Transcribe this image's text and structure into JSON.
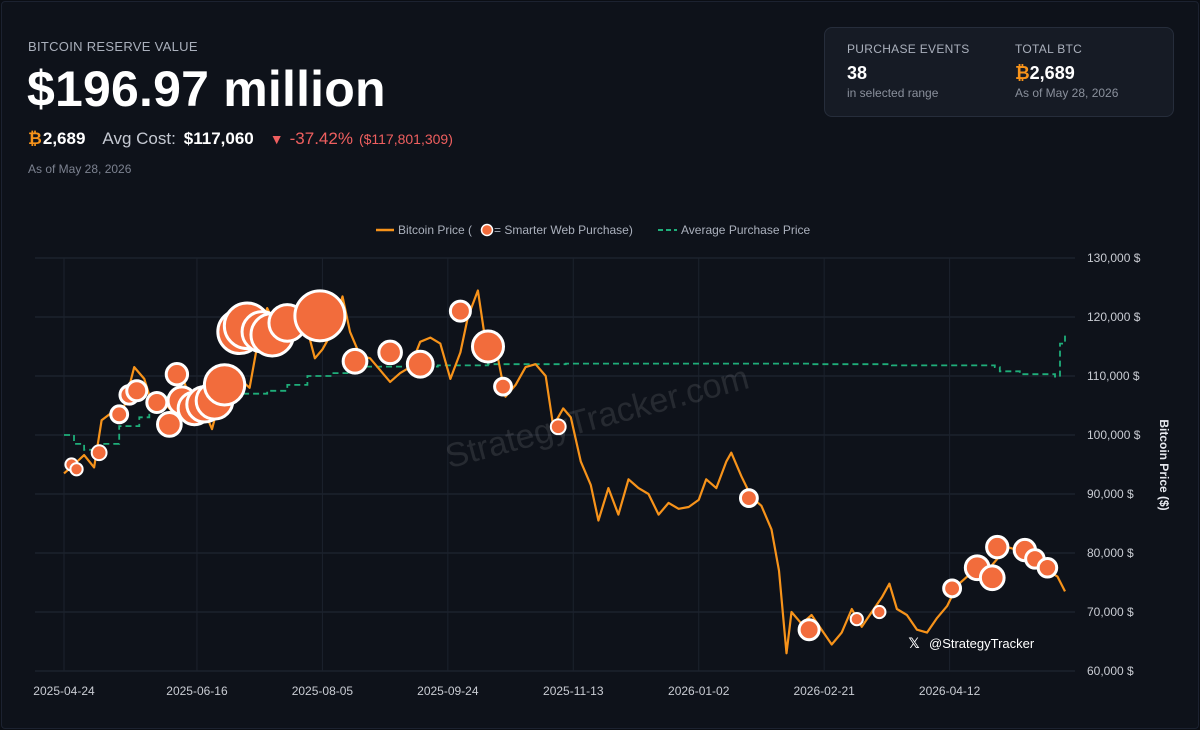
{
  "header": {
    "label": "BITCOIN RESERVE VALUE",
    "value": "$196.97 million",
    "btc_symbol": "₿",
    "btc_amount": "2,689",
    "avg_cost_label": "Avg Cost:",
    "avg_cost_value": "$117,060",
    "change_arrow": "▼",
    "change_pct": "-37.42%",
    "change_abs": "($117,801,309)",
    "as_of": "As of May 28, 2026"
  },
  "summary_card": {
    "events_label": "PURCHASE EVENTS",
    "events_value": "38",
    "events_sub": "in selected range",
    "total_label": "TOTAL BTC",
    "total_symbol": "₿",
    "total_value": "2,689",
    "total_sub": "As of May 28, 2026"
  },
  "colors": {
    "price_line": "#f7931a",
    "avg_line": "#1fae7a",
    "marker_fill": "#f26c3c",
    "marker_stroke": "#ffffff",
    "negative": "#ef5f5f",
    "background": "#0e121a"
  },
  "chart_data": {
    "type": "line",
    "legend": {
      "price_prefix": "Bitcoin Price (",
      "price_suffix": " = Smarter Web Purchase)",
      "avg": "Average Purchase Price",
      "position": "top-center"
    },
    "ylabel": "Bitcoin Price ($)",
    "ylim": [
      60000,
      130000
    ],
    "y_ticks": [
      60000,
      70000,
      80000,
      90000,
      100000,
      110000,
      120000,
      130000
    ],
    "y_tick_labels": [
      "60,000 $",
      "70,000 $",
      "80,000 $",
      "90,000 $",
      "100,000 $",
      "110,000 $",
      "120,000 $",
      "130,000 $"
    ],
    "xlim": [
      "2025-04-24",
      "2026-05-28"
    ],
    "x_tick_labels": [
      "2025-04-24",
      "2025-06-16",
      "2025-08-05",
      "2025-09-24",
      "2025-11-13",
      "2026-01-02",
      "2026-02-21",
      "2026-04-12"
    ],
    "watermark": "StrategyTracker.com",
    "handle": "@StrategyTracker",
    "handle_icon": "x-logo-icon",
    "grid": true,
    "price_series": {
      "name": "Bitcoin Price",
      "points": [
        [
          "2025-04-24",
          93500
        ],
        [
          "2025-04-28",
          95000
        ],
        [
          "2025-05-02",
          96600
        ],
        [
          "2025-05-06",
          94500
        ],
        [
          "2025-05-09",
          102500
        ],
        [
          "2025-05-13",
          103800
        ],
        [
          "2025-05-17",
          103200
        ],
        [
          "2025-05-22",
          111500
        ],
        [
          "2025-05-26",
          109500
        ],
        [
          "2025-05-30",
          104000
        ],
        [
          "2025-06-03",
          105500
        ],
        [
          "2025-06-06",
          104000
        ],
        [
          "2025-06-10",
          110000
        ],
        [
          "2025-06-14",
          105500
        ],
        [
          "2025-06-18",
          105000
        ],
        [
          "2025-06-22",
          101000
        ],
        [
          "2025-06-26",
          107500
        ],
        [
          "2025-06-30",
          107200
        ],
        [
          "2025-07-03",
          109500
        ],
        [
          "2025-07-07",
          108000
        ],
        [
          "2025-07-11",
          117500
        ],
        [
          "2025-07-14",
          121500
        ],
        [
          "2025-07-18",
          118000
        ],
        [
          "2025-07-22",
          119500
        ],
        [
          "2025-07-26",
          117500
        ],
        [
          "2025-07-30",
          117800
        ],
        [
          "2025-08-02",
          113000
        ],
        [
          "2025-08-05",
          114500
        ],
        [
          "2025-08-09",
          117500
        ],
        [
          "2025-08-13",
          123500
        ],
        [
          "2025-08-16",
          117500
        ],
        [
          "2025-08-20",
          113500
        ],
        [
          "2025-08-24",
          113000
        ],
        [
          "2025-08-28",
          111000
        ],
        [
          "2025-09-01",
          109000
        ],
        [
          "2025-09-05",
          110500
        ],
        [
          "2025-09-09",
          111500
        ],
        [
          "2025-09-13",
          115800
        ],
        [
          "2025-09-17",
          116500
        ],
        [
          "2025-09-21",
          115500
        ],
        [
          "2025-09-25",
          109500
        ],
        [
          "2025-09-29",
          114000
        ],
        [
          "2025-10-02",
          120000
        ],
        [
          "2025-10-06",
          124500
        ],
        [
          "2025-10-10",
          113000
        ],
        [
          "2025-10-14",
          113000
        ],
        [
          "2025-10-17",
          106500
        ],
        [
          "2025-10-21",
          108500
        ],
        [
          "2025-10-25",
          111500
        ],
        [
          "2025-10-29",
          112000
        ],
        [
          "2025-11-02",
          110000
        ],
        [
          "2025-11-05",
          101500
        ],
        [
          "2025-11-09",
          104500
        ],
        [
          "2025-11-12",
          103000
        ],
        [
          "2025-11-16",
          95500
        ],
        [
          "2025-11-20",
          91500
        ],
        [
          "2025-11-23",
          85500
        ],
        [
          "2025-11-27",
          91000
        ],
        [
          "2025-12-01",
          86500
        ],
        [
          "2025-12-05",
          92500
        ],
        [
          "2025-12-09",
          91000
        ],
        [
          "2025-12-13",
          90000
        ],
        [
          "2025-12-17",
          86500
        ],
        [
          "2025-12-21",
          88500
        ],
        [
          "2025-12-25",
          87500
        ],
        [
          "2025-12-29",
          87800
        ],
        [
          "2026-01-02",
          89000
        ],
        [
          "2026-01-05",
          92500
        ],
        [
          "2026-01-09",
          91000
        ],
        [
          "2026-01-13",
          95500
        ],
        [
          "2026-01-15",
          97000
        ],
        [
          "2026-01-19",
          93000
        ],
        [
          "2026-01-23",
          89500
        ],
        [
          "2026-01-27",
          88000
        ],
        [
          "2026-01-31",
          84000
        ],
        [
          "2026-02-03",
          77000
        ],
        [
          "2026-02-06",
          63000
        ],
        [
          "2026-02-08",
          70000
        ],
        [
          "2026-02-12",
          68000
        ],
        [
          "2026-02-16",
          69500
        ],
        [
          "2026-02-20",
          67000
        ],
        [
          "2026-02-24",
          64500
        ],
        [
          "2026-02-28",
          66500
        ],
        [
          "2026-03-04",
          70500
        ],
        [
          "2026-03-08",
          67500
        ],
        [
          "2026-03-12",
          70000
        ],
        [
          "2026-03-16",
          72500
        ],
        [
          "2026-03-19",
          74800
        ],
        [
          "2026-03-22",
          70500
        ],
        [
          "2026-03-26",
          69500
        ],
        [
          "2026-03-30",
          67000
        ],
        [
          "2026-04-03",
          66500
        ],
        [
          "2026-04-07",
          69000
        ],
        [
          "2026-04-11",
          71000
        ],
        [
          "2026-04-15",
          74500
        ],
        [
          "2026-04-19",
          76000
        ],
        [
          "2026-04-23",
          78500
        ],
        [
          "2026-04-27",
          77000
        ],
        [
          "2026-05-01",
          79000
        ],
        [
          "2026-05-05",
          81000
        ],
        [
          "2026-05-09",
          80500
        ],
        [
          "2026-05-13",
          79500
        ],
        [
          "2026-05-17",
          78000
        ],
        [
          "2026-05-21",
          77000
        ],
        [
          "2026-05-25",
          76000
        ],
        [
          "2026-05-28",
          73500
        ]
      ]
    },
    "avg_series": {
      "name": "Average Purchase Price",
      "points": [
        [
          "2025-04-24",
          100000
        ],
        [
          "2025-04-28",
          98500
        ],
        [
          "2025-05-02",
          97500
        ],
        [
          "2025-05-09",
          98500
        ],
        [
          "2025-05-16",
          101500
        ],
        [
          "2025-05-24",
          103000
        ],
        [
          "2025-05-28",
          105500
        ],
        [
          "2025-06-02",
          106500
        ],
        [
          "2025-06-16",
          106700
        ],
        [
          "2025-06-28",
          107000
        ],
        [
          "2025-07-14",
          107500
        ],
        [
          "2025-07-22",
          108500
        ],
        [
          "2025-07-30",
          110000
        ],
        [
          "2025-08-09",
          110500
        ],
        [
          "2025-08-16",
          111600
        ],
        [
          "2025-09-20",
          111800
        ],
        [
          "2025-10-10",
          112000
        ],
        [
          "2025-11-10",
          112100
        ],
        [
          "2026-01-02",
          112100
        ],
        [
          "2026-02-15",
          112000
        ],
        [
          "2026-03-20",
          111800
        ],
        [
          "2026-04-30",
          111500
        ],
        [
          "2026-05-02",
          110800
        ],
        [
          "2026-05-10",
          110300
        ],
        [
          "2026-05-24",
          109900
        ],
        [
          "2026-05-26",
          115500
        ],
        [
          "2026-05-28",
          117200
        ]
      ]
    },
    "purchases": [
      {
        "date": "2025-04-27",
        "price": 95000,
        "btc": 5
      },
      {
        "date": "2025-04-29",
        "price": 94200,
        "btc": 5
      },
      {
        "date": "2025-05-08",
        "price": 97000,
        "btc": 10
      },
      {
        "date": "2025-05-16",
        "price": 103500,
        "btc": 15
      },
      {
        "date": "2025-05-20",
        "price": 106800,
        "btc": 20
      },
      {
        "date": "2025-05-23",
        "price": 107500,
        "btc": 25
      },
      {
        "date": "2025-05-31",
        "price": 105500,
        "btc": 25
      },
      {
        "date": "2025-06-05",
        "price": 101800,
        "btc": 40
      },
      {
        "date": "2025-06-08",
        "price": 110300,
        "btc": 30
      },
      {
        "date": "2025-06-10",
        "price": 105800,
        "btc": 60
      },
      {
        "date": "2025-06-15",
        "price": 104500,
        "btc": 90
      },
      {
        "date": "2025-06-19",
        "price": 105200,
        "btc": 110
      },
      {
        "date": "2025-06-23",
        "price": 105800,
        "btc": 120
      },
      {
        "date": "2025-06-27",
        "price": 108500,
        "btc": 150
      },
      {
        "date": "2025-07-03",
        "price": 117500,
        "btc": 180
      },
      {
        "date": "2025-07-06",
        "price": 118500,
        "btc": 200
      },
      {
        "date": "2025-07-12",
        "price": 117500,
        "btc": 150
      },
      {
        "date": "2025-07-16",
        "price": 117000,
        "btc": 170
      },
      {
        "date": "2025-07-22",
        "price": 119000,
        "btc": 120
      },
      {
        "date": "2025-08-04",
        "price": 120200,
        "btc": 250
      },
      {
        "date": "2025-08-18",
        "price": 112500,
        "btc": 40
      },
      {
        "date": "2025-09-01",
        "price": 114000,
        "btc": 35
      },
      {
        "date": "2025-09-13",
        "price": 112000,
        "btc": 50
      },
      {
        "date": "2025-09-29",
        "price": 121000,
        "btc": 25
      },
      {
        "date": "2025-10-10",
        "price": 115000,
        "btc": 80
      },
      {
        "date": "2025-10-16",
        "price": 108200,
        "btc": 15
      },
      {
        "date": "2025-11-07",
        "price": 101400,
        "btc": 10
      },
      {
        "date": "2026-01-22",
        "price": 89300,
        "btc": 15
      },
      {
        "date": "2026-02-15",
        "price": 67000,
        "btc": 25
      },
      {
        "date": "2026-03-06",
        "price": 68800,
        "btc": 5
      },
      {
        "date": "2026-03-15",
        "price": 70000,
        "btc": 5
      },
      {
        "date": "2026-04-13",
        "price": 74000,
        "btc": 15
      },
      {
        "date": "2026-04-23",
        "price": 77500,
        "btc": 40
      },
      {
        "date": "2026-04-29",
        "price": 75800,
        "btc": 40
      },
      {
        "date": "2026-05-01",
        "price": 81000,
        "btc": 30
      },
      {
        "date": "2026-05-12",
        "price": 80500,
        "btc": 30
      },
      {
        "date": "2026-05-16",
        "price": 79000,
        "btc": 20
      },
      {
        "date": "2026-05-21",
        "price": 77500,
        "btc": 20
      }
    ]
  }
}
